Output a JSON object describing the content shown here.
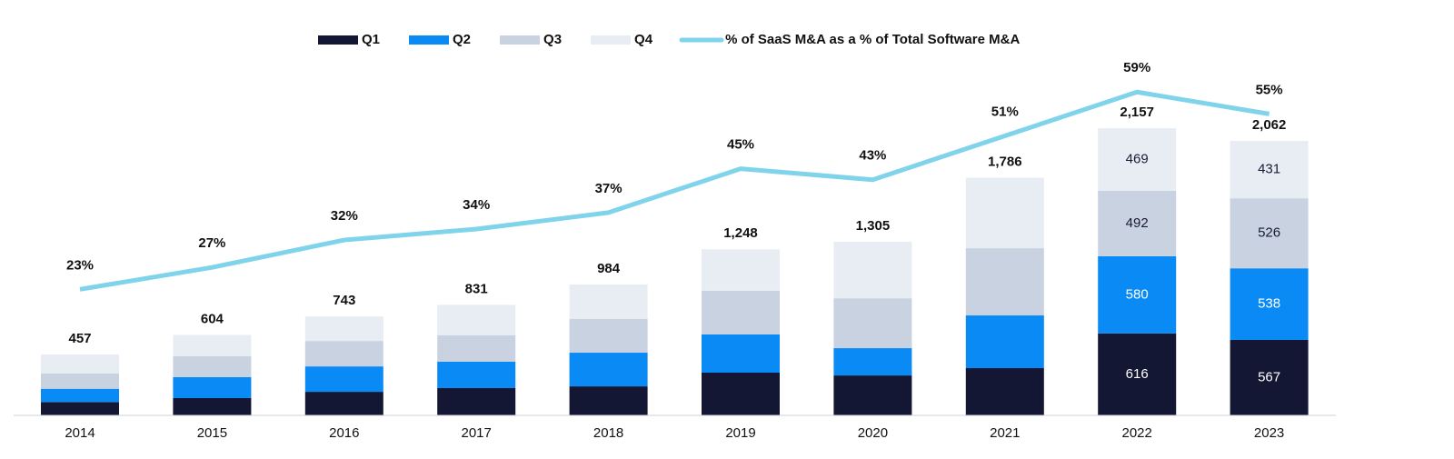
{
  "chart_data": {
    "type": "stacked-bar-line",
    "categories": [
      "2014",
      "2015",
      "2016",
      "2017",
      "2018",
      "2019",
      "2020",
      "2021",
      "2022",
      "2023"
    ],
    "series": [
      {
        "name": "Q1",
        "color": "#141733",
        "values": [
          100,
          130,
          177,
          205,
          218,
          321,
          300,
          355,
          616,
          567
        ],
        "value_labels": [
          null,
          null,
          null,
          null,
          null,
          null,
          null,
          null,
          "616",
          "567"
        ]
      },
      {
        "name": "Q2",
        "color": "#0a8af5",
        "values": [
          100,
          157,
          191,
          198,
          253,
          287,
          205,
          396,
          580,
          538
        ],
        "value_labels": [
          null,
          null,
          null,
          null,
          null,
          null,
          null,
          null,
          "580",
          "538"
        ]
      },
      {
        "name": "Q3",
        "color": "#c8d2e1",
        "values": [
          115,
          157,
          191,
          198,
          253,
          328,
          375,
          505,
          492,
          526
        ],
        "value_labels": [
          null,
          null,
          null,
          null,
          null,
          null,
          null,
          null,
          "492",
          "526"
        ]
      },
      {
        "name": "Q4",
        "color": "#e8edf4",
        "values": [
          142,
          160,
          184,
          230,
          260,
          312,
          425,
          530,
          469,
          431
        ],
        "value_labels": [
          null,
          null,
          null,
          null,
          null,
          null,
          null,
          null,
          "469",
          "431"
        ]
      },
      {
        "name": "% of SaaS M&A as a % of Total Software M&A",
        "type": "line",
        "axis": "y2",
        "color": "#7fd3ea",
        "values": [
          23,
          27,
          32,
          34,
          37,
          45,
          43,
          51,
          59,
          55
        ],
        "value_labels": [
          "23%",
          "27%",
          "32%",
          "34%",
          "37%",
          "45%",
          "43%",
          "51%",
          "59%",
          "55%"
        ]
      }
    ],
    "totals": [
      457,
      604,
      743,
      831,
      984,
      1248,
      1305,
      1786,
      2157,
      2062
    ],
    "total_labels": [
      "457",
      "604",
      "743",
      "831",
      "984",
      "1,248",
      "1,305",
      "1,786",
      "2,157",
      "2,062"
    ],
    "ylim": [
      0,
      2800
    ],
    "y2lim": [
      0,
      68
    ],
    "grid": false,
    "legend": "top"
  }
}
